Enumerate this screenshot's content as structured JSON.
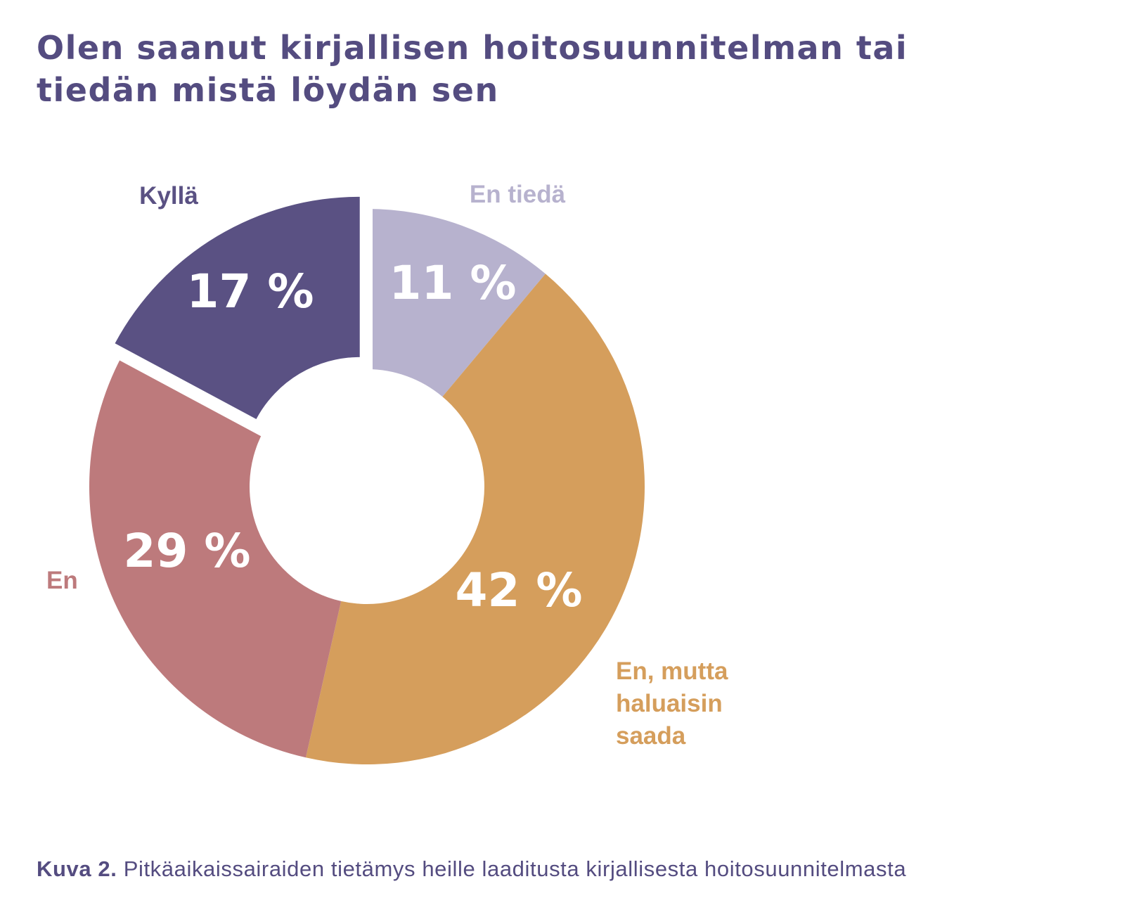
{
  "title": {
    "line1": "Olen saanut kirjallisen hoitosuunnitelman tai",
    "line2": "tiedän mistä löydän sen"
  },
  "caption": {
    "label": "Kuva 2.",
    "text": "Pitkäaikaissairaiden tietämys heille laaditusta kirjallisesta hoitosuunnitelmasta"
  },
  "chart_data": {
    "type": "pie",
    "subtype": "donut",
    "exploded_slice": "Kyllä",
    "slices": [
      {
        "label": "Kyllä",
        "value": 17,
        "value_label": "17 %",
        "color": "#5A5183"
      },
      {
        "label": "En tiedä",
        "value": 11,
        "value_label": "11 %",
        "color": "#B7B2CE"
      },
      {
        "label": "En, mutta haluaisin saada",
        "value": 42,
        "value_label": "42 %",
        "color": "#D59E5C"
      },
      {
        "label": "En",
        "value": 29,
        "value_label": "29 %",
        "color": "#BD7A7C"
      }
    ]
  }
}
